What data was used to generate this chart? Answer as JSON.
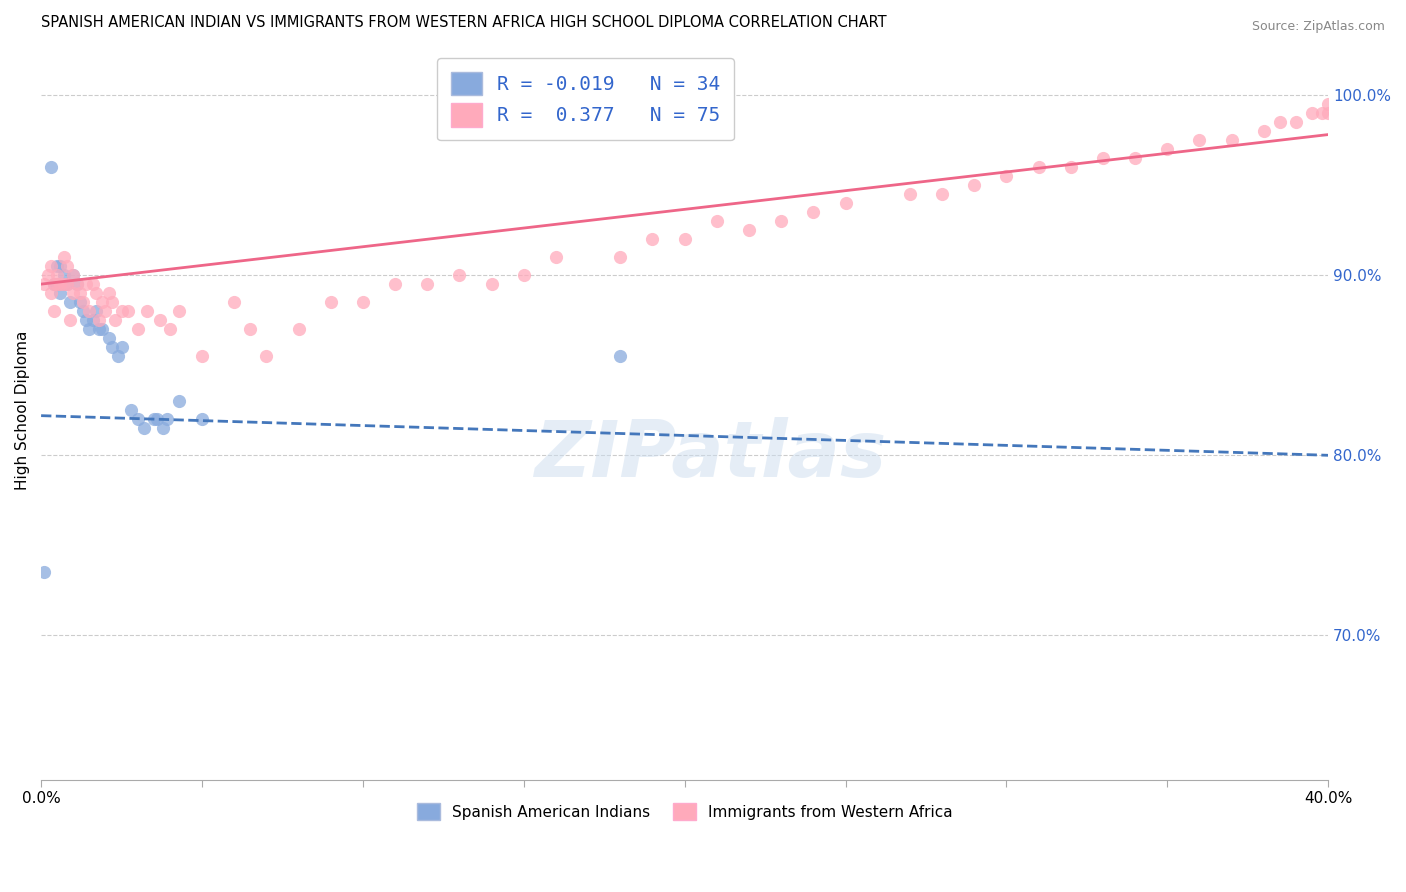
{
  "title": "SPANISH AMERICAN INDIAN VS IMMIGRANTS FROM WESTERN AFRICA HIGH SCHOOL DIPLOMA CORRELATION CHART",
  "source": "Source: ZipAtlas.com",
  "ylabel": "High School Diploma",
  "y_ticks_right": [
    "70.0%",
    "80.0%",
    "90.0%",
    "100.0%"
  ],
  "y_tick_vals": [
    0.7,
    0.8,
    0.9,
    1.0
  ],
  "xlim": [
    0.0,
    0.4
  ],
  "ylim": [
    0.62,
    1.03
  ],
  "blue_color": "#88AADD",
  "blue_line_color": "#4477BB",
  "pink_color": "#FFAABB",
  "pink_line_color": "#EE6688",
  "watermark_text": "ZIPatlas",
  "series1_label": "Spanish American Indians",
  "series2_label": "Immigrants from Western Africa",
  "legend_line1": "R = -0.019   N = 34",
  "legend_line2": "R =  0.377   N = 75",
  "blue_trend_x": [
    0.0,
    0.4
  ],
  "blue_trend_y": [
    0.822,
    0.8
  ],
  "pink_trend_x": [
    0.0,
    0.4
  ],
  "pink_trend_y": [
    0.895,
    0.978
  ],
  "blue_scatter_x": [
    0.001,
    0.003,
    0.004,
    0.005,
    0.005,
    0.006,
    0.006,
    0.007,
    0.008,
    0.009,
    0.01,
    0.011,
    0.012,
    0.013,
    0.014,
    0.015,
    0.016,
    0.017,
    0.018,
    0.019,
    0.021,
    0.022,
    0.024,
    0.025,
    0.028,
    0.03,
    0.032,
    0.035,
    0.036,
    0.038,
    0.039,
    0.043,
    0.05,
    0.18
  ],
  "blue_scatter_y": [
    0.735,
    0.96,
    0.895,
    0.905,
    0.895,
    0.905,
    0.89,
    0.9,
    0.895,
    0.885,
    0.9,
    0.895,
    0.885,
    0.88,
    0.875,
    0.87,
    0.875,
    0.88,
    0.87,
    0.87,
    0.865,
    0.86,
    0.855,
    0.86,
    0.825,
    0.82,
    0.815,
    0.82,
    0.82,
    0.815,
    0.82,
    0.83,
    0.82,
    0.855
  ],
  "pink_scatter_x": [
    0.001,
    0.002,
    0.003,
    0.003,
    0.004,
    0.004,
    0.005,
    0.005,
    0.006,
    0.007,
    0.007,
    0.008,
    0.008,
    0.009,
    0.01,
    0.01,
    0.011,
    0.012,
    0.013,
    0.014,
    0.015,
    0.016,
    0.017,
    0.018,
    0.019,
    0.02,
    0.021,
    0.022,
    0.023,
    0.025,
    0.027,
    0.03,
    0.033,
    0.037,
    0.04,
    0.043,
    0.05,
    0.06,
    0.065,
    0.07,
    0.08,
    0.09,
    0.1,
    0.11,
    0.12,
    0.13,
    0.14,
    0.15,
    0.16,
    0.18,
    0.19,
    0.2,
    0.21,
    0.22,
    0.23,
    0.24,
    0.25,
    0.27,
    0.28,
    0.29,
    0.3,
    0.31,
    0.32,
    0.33,
    0.34,
    0.35,
    0.36,
    0.37,
    0.38,
    0.385,
    0.39,
    0.395,
    0.398,
    0.4,
    0.4
  ],
  "pink_scatter_y": [
    0.895,
    0.9,
    0.89,
    0.905,
    0.895,
    0.88,
    0.9,
    0.895,
    0.895,
    0.91,
    0.895,
    0.905,
    0.895,
    0.875,
    0.9,
    0.89,
    0.895,
    0.89,
    0.885,
    0.895,
    0.88,
    0.895,
    0.89,
    0.875,
    0.885,
    0.88,
    0.89,
    0.885,
    0.875,
    0.88,
    0.88,
    0.87,
    0.88,
    0.875,
    0.87,
    0.88,
    0.855,
    0.885,
    0.87,
    0.855,
    0.87,
    0.885,
    0.885,
    0.895,
    0.895,
    0.9,
    0.895,
    0.9,
    0.91,
    0.91,
    0.92,
    0.92,
    0.93,
    0.925,
    0.93,
    0.935,
    0.94,
    0.945,
    0.945,
    0.95,
    0.955,
    0.96,
    0.96,
    0.965,
    0.965,
    0.97,
    0.975,
    0.975,
    0.98,
    0.985,
    0.985,
    0.99,
    0.99,
    0.995,
    0.99
  ]
}
